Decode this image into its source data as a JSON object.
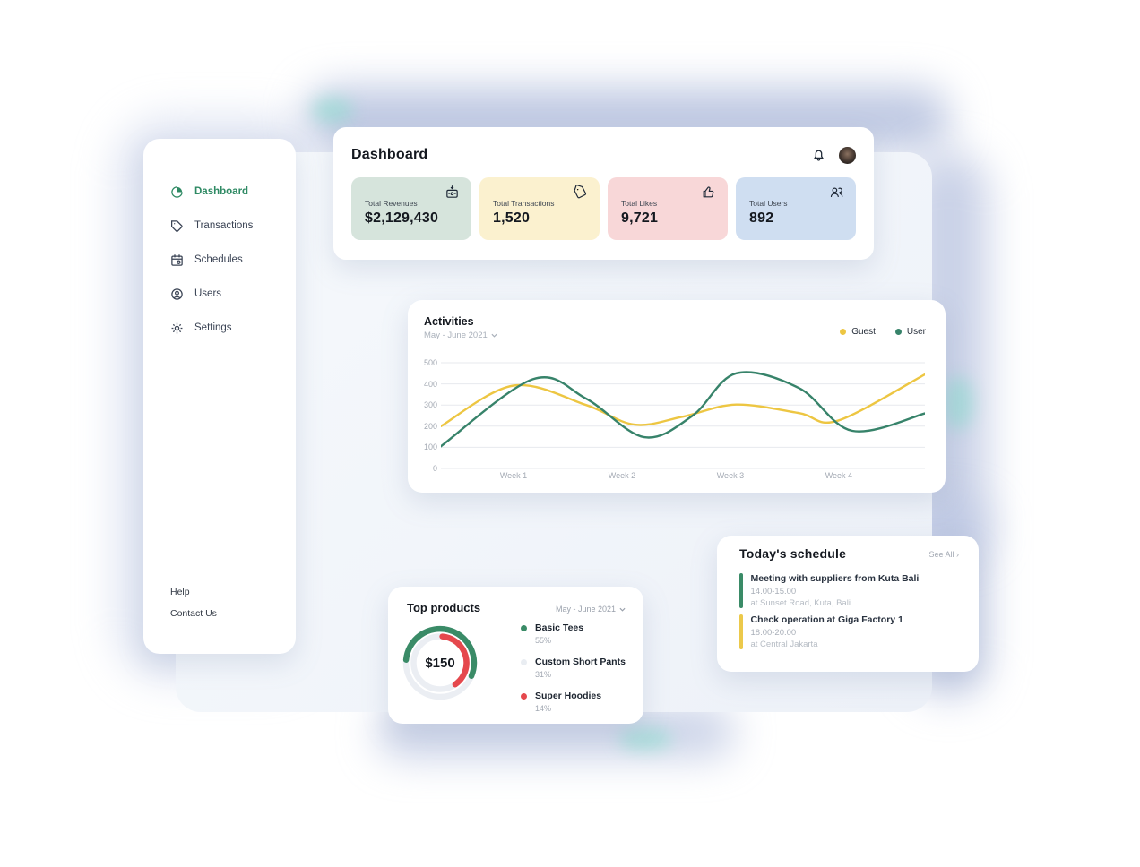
{
  "header": {
    "title": "Dashboard"
  },
  "sidebar": {
    "items": [
      {
        "label": "Dashboard",
        "icon": "pie-chart-icon",
        "active": true
      },
      {
        "label": "Transactions",
        "icon": "tag-icon",
        "active": false
      },
      {
        "label": "Schedules",
        "icon": "calendar-icon",
        "active": false
      },
      {
        "label": "Users",
        "icon": "user-circle-icon",
        "active": false
      },
      {
        "label": "Settings",
        "icon": "gear-icon",
        "active": false
      }
    ],
    "footer_links": [
      {
        "label": "Help"
      },
      {
        "label": "Contact Us"
      }
    ]
  },
  "stats": [
    {
      "label": "Total Revenues",
      "value": "$2,129,430",
      "bg": "#d6e4dc",
      "icon": "cash-register-icon"
    },
    {
      "label": "Total Transactions",
      "value": "1,520",
      "bg": "#fbf1cf",
      "icon": "tag-icon"
    },
    {
      "label": "Total Likes",
      "value": "9,721",
      "bg": "#f8d7d8",
      "icon": "thumbs-up-icon"
    },
    {
      "label": "Total Users",
      "value": "892",
      "bg": "#cfdef1",
      "icon": "users-icon"
    }
  ],
  "schedule": {
    "title": "Today's schedule",
    "see_all": "See All",
    "items": [
      {
        "title": "Meeting with suppliers from Kuta Bali",
        "time": "14.00-15.00",
        "location": "at Sunset Road, Kuta, Bali",
        "accent": "#3a8b67"
      },
      {
        "title": "Check operation at Giga Factory 1",
        "time": "18.00-20.00",
        "location": "at Central Jakarta",
        "accent": "#ecc94b"
      }
    ]
  },
  "chart_data": [
    {
      "type": "line",
      "title": "Activities",
      "period": "May - June 2021",
      "legend_position": "top-right",
      "grid": "horizontal",
      "ylim": [
        0,
        500
      ],
      "yticks": [
        0,
        100,
        200,
        300,
        400,
        500
      ],
      "x_tick_labels": [
        "Week 1",
        "Week 2",
        "Week 3",
        "Week 4"
      ],
      "x_tick_pos": [
        0.15,
        0.374,
        0.598,
        0.822
      ],
      "series": [
        {
          "name": "Guest",
          "color": "#edc642",
          "points": [
            [
              0,
              200
            ],
            [
              0.15,
              392
            ],
            [
              0.3,
              300
            ],
            [
              0.4,
              207
            ],
            [
              0.5,
              245
            ],
            [
              0.61,
              302
            ],
            [
              0.74,
              262
            ],
            [
              0.82,
              226
            ],
            [
              1,
              445
            ]
          ]
        },
        {
          "name": "User",
          "color": "#37836a",
          "points": [
            [
              0,
              105
            ],
            [
              0.19,
              422
            ],
            [
              0.3,
              330
            ],
            [
              0.42,
              148
            ],
            [
              0.52,
              250
            ],
            [
              0.61,
              450
            ],
            [
              0.74,
              380
            ],
            [
              0.85,
              178
            ],
            [
              1,
              260
            ]
          ]
        }
      ]
    },
    {
      "type": "pie",
      "title": "Top products",
      "period": "May - June 2021",
      "center_label": "$150",
      "track_color": "#ebeef3",
      "slices": [
        {
          "label": "Basic Tees",
          "value_pct": 55,
          "pct_label": "55%",
          "color": "#3a8b67"
        },
        {
          "label": "Custom Short Pants",
          "value_pct": 31,
          "pct_label": "31%",
          "color": "#e9edf2"
        },
        {
          "label": "Super Hoodies",
          "value_pct": 14,
          "pct_label": "14%",
          "color": "#e5484d"
        }
      ]
    }
  ]
}
